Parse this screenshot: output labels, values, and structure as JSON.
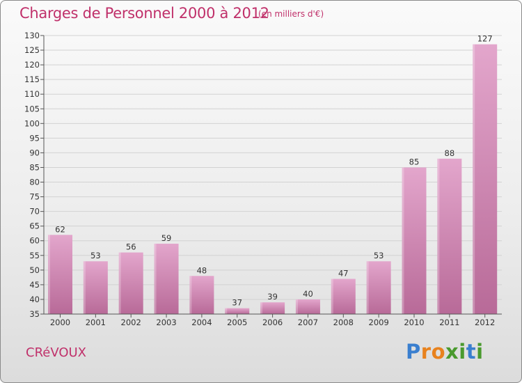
{
  "header": {
    "title": "Charges de Personnel 2000 à 2012",
    "subtitle": "(en milliers d'€)"
  },
  "footer": {
    "commune": "CRéVOUX",
    "logo_letters": [
      "P",
      "r",
      "o",
      "x",
      "i",
      "t",
      "i"
    ],
    "logo_colors": [
      "#3a7fcf",
      "#e8821e",
      "#e8821e",
      "#4a9a2e",
      "#4a9a2e",
      "#3a7fcf",
      "#4a9a2e"
    ]
  },
  "colors": {
    "bar_top": "#e3a6cc",
    "bar_bottom": "#b86a98",
    "text_accent": "#c0306a"
  },
  "chart_data": {
    "type": "bar",
    "title": "Charges de Personnel 2000 à 2012",
    "subtitle": "(en milliers d'€)",
    "categories": [
      "2000",
      "2001",
      "2002",
      "2003",
      "2004",
      "2005",
      "2006",
      "2007",
      "2008",
      "2009",
      "2010",
      "2011",
      "2012"
    ],
    "values": [
      62,
      53,
      56,
      59,
      48,
      37,
      39,
      40,
      47,
      53,
      85,
      88,
      127
    ],
    "ylim": [
      35,
      130
    ],
    "ytick_step": 5,
    "grid": true,
    "xlabel": "",
    "ylabel": ""
  }
}
